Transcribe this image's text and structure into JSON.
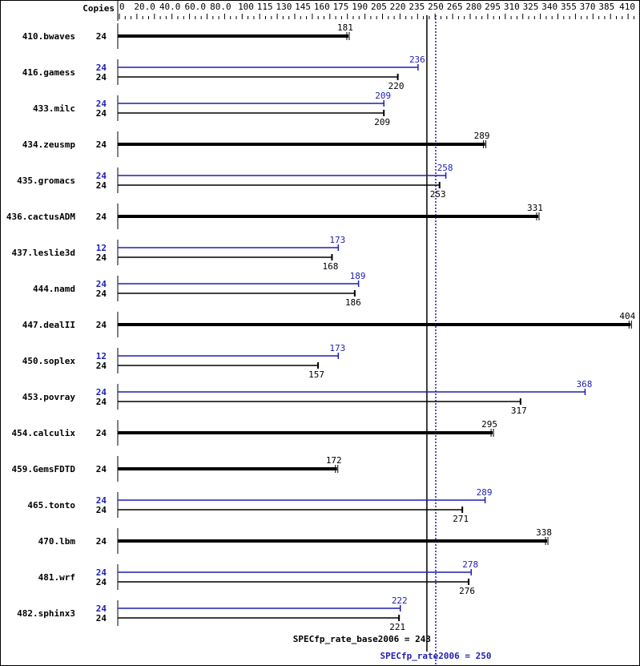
{
  "chart_data": {
    "type": "bar",
    "copies_header": "Copies",
    "xlim": [
      0,
      410
    ],
    "ticks": [
      0,
      20,
      40,
      60,
      80,
      100,
      115,
      130,
      145,
      160,
      175,
      190,
      205,
      220,
      235,
      250,
      265,
      280,
      295,
      310,
      325,
      340,
      355,
      370,
      385,
      410
    ],
    "tick_labels": [
      "0",
      "20.0",
      "40.0",
      "60.0",
      "80.0",
      "100",
      "115",
      "130",
      "145",
      "160",
      "175",
      "190",
      "205",
      "220",
      "235",
      "250",
      "265",
      "280",
      "295",
      "310",
      "325",
      "340",
      "355",
      "370",
      "385",
      "410"
    ],
    "colors": {
      "base": "#000000",
      "peak": "#1e1eb4"
    },
    "benchmarks": [
      {
        "name": "410.bwaves",
        "base_copies": "24",
        "base": 181
      },
      {
        "name": "416.gamess",
        "peak_copies": "24",
        "peak": 236,
        "base_copies": "24",
        "base": 220
      },
      {
        "name": "433.milc",
        "peak_copies": "24",
        "peak": 209,
        "base_copies": "24",
        "base": 209
      },
      {
        "name": "434.zeusmp",
        "base_copies": "24",
        "base": 289
      },
      {
        "name": "435.gromacs",
        "peak_copies": "24",
        "peak": 258,
        "base_copies": "24",
        "base": 253
      },
      {
        "name": "436.cactusADM",
        "base_copies": "24",
        "base": 331
      },
      {
        "name": "437.leslie3d",
        "peak_copies": "12",
        "peak": 173,
        "base_copies": "24",
        "base": 168
      },
      {
        "name": "444.namd",
        "peak_copies": "24",
        "peak": 189,
        "base_copies": "24",
        "base": 186
      },
      {
        "name": "447.dealII",
        "base_copies": "24",
        "base": 404
      },
      {
        "name": "450.soplex",
        "peak_copies": "12",
        "peak": 173,
        "base_copies": "24",
        "base": 157
      },
      {
        "name": "453.povray",
        "peak_copies": "24",
        "peak": 368,
        "base_copies": "24",
        "base": 317
      },
      {
        "name": "454.calculix",
        "base_copies": "24",
        "base": 295
      },
      {
        "name": "459.GemsFDTD",
        "base_copies": "24",
        "base": 172
      },
      {
        "name": "465.tonto",
        "peak_copies": "24",
        "peak": 289,
        "base_copies": "24",
        "base": 271
      },
      {
        "name": "470.lbm",
        "base_copies": "24",
        "base": 338
      },
      {
        "name": "481.wrf",
        "peak_copies": "24",
        "peak": 278,
        "base_copies": "24",
        "base": 276
      },
      {
        "name": "482.sphinx3",
        "peak_copies": "24",
        "peak": 222,
        "base_copies": "24",
        "base": 221
      }
    ],
    "base_ref": {
      "label": "SPECfp_rate_base2006 = 243",
      "value": 243
    },
    "peak_ref": {
      "label": "SPECfp_rate2006 = 250",
      "value": 250
    }
  }
}
